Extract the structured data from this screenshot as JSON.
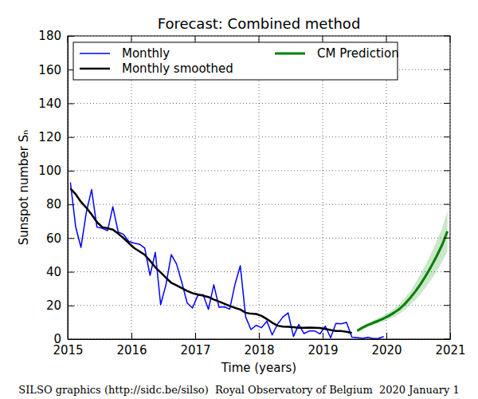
{
  "chart_data": {
    "type": "line",
    "title": "Forecast: Combined method",
    "x_label": "Time (years)",
    "y_label": "Sunspot number Sₙ",
    "caption": "SILSO graphics (http://sidc.be/silso)  Royal Observatory of Belgium  2020 January 1",
    "xlim": [
      2015,
      2021
    ],
    "xticks": [
      2015,
      2016,
      2017,
      2018,
      2019,
      2020,
      2021
    ],
    "ylim": [
      0,
      180
    ],
    "yticks": [
      0,
      20,
      40,
      60,
      80,
      100,
      120,
      140,
      160,
      180
    ],
    "grid": true,
    "legend": "upper left",
    "series": [
      {
        "name": "Monthly",
        "color": "#0000ff",
        "line_style": "solid",
        "x": [
          2015.042,
          2015.125,
          2015.208,
          2015.292,
          2015.375,
          2015.458,
          2015.542,
          2015.625,
          2015.708,
          2015.792,
          2015.875,
          2015.958,
          2016.042,
          2016.125,
          2016.208,
          2016.292,
          2016.375,
          2016.458,
          2016.542,
          2016.625,
          2016.708,
          2016.792,
          2016.875,
          2016.958,
          2017.042,
          2017.125,
          2017.208,
          2017.292,
          2017.375,
          2017.458,
          2017.542,
          2017.625,
          2017.708,
          2017.792,
          2017.875,
          2017.958,
          2018.042,
          2018.125,
          2018.208,
          2018.292,
          2018.375,
          2018.458,
          2018.542,
          2018.625,
          2018.708,
          2018.792,
          2018.875,
          2018.958,
          2019.042,
          2019.125,
          2019.208,
          2019.292,
          2019.375,
          2019.458,
          2019.542,
          2019.625,
          2019.708,
          2019.792,
          2019.875,
          2019.958
        ],
        "values": [
          93.0,
          66.7,
          54.5,
          75.3,
          88.8,
          66.5,
          65.8,
          64.4,
          78.6,
          63.6,
          62.2,
          58.0,
          57.0,
          56.4,
          54.1,
          37.9,
          51.5,
          20.5,
          32.4,
          50.2,
          44.6,
          33.4,
          21.4,
          18.5,
          26.1,
          26.4,
          17.7,
          32.3,
          18.9,
          19.2,
          17.8,
          32.6,
          43.6,
          13.2,
          5.7,
          8.2,
          6.8,
          10.7,
          2.5,
          8.9,
          13.1,
          15.6,
          1.6,
          8.7,
          3.3,
          4.9,
          4.9,
          3.1,
          7.7,
          0.8,
          9.4,
          9.1,
          9.9,
          1.2,
          0.9,
          0.5,
          1.1,
          0.4,
          0.5,
          1.5
        ]
      },
      {
        "name": "Monthly smoothed",
        "color": "#000000",
        "line_style": "solid",
        "x": [
          2015.042,
          2015.125,
          2015.208,
          2015.292,
          2015.375,
          2015.458,
          2015.542,
          2015.625,
          2015.708,
          2015.792,
          2015.875,
          2015.958,
          2016.042,
          2016.125,
          2016.208,
          2016.292,
          2016.375,
          2016.458,
          2016.542,
          2016.625,
          2016.708,
          2016.792,
          2016.875,
          2016.958,
          2017.042,
          2017.125,
          2017.208,
          2017.292,
          2017.375,
          2017.458,
          2017.542,
          2017.625,
          2017.708,
          2017.792,
          2017.875,
          2017.958,
          2018.042,
          2018.125,
          2018.208,
          2018.292,
          2018.375,
          2018.458,
          2018.542,
          2018.625,
          2018.708,
          2018.792,
          2018.875,
          2018.958,
          2019.042,
          2019.125,
          2019.208,
          2019.292,
          2019.375,
          2019.458
        ],
        "values": [
          89.5,
          86.0,
          81.5,
          78.0,
          74.0,
          69.5,
          66.5,
          65.8,
          65.0,
          62.6,
          60.0,
          57.0,
          54.1,
          52.1,
          50.1,
          46.5,
          42.6,
          39.6,
          36.4,
          33.4,
          31.9,
          30.3,
          28.6,
          27.3,
          26.5,
          25.8,
          25.0,
          23.5,
          22.3,
          21.0,
          19.7,
          18.6,
          17.6,
          15.7,
          15.1,
          14.9,
          13.8,
          11.9,
          9.8,
          8.0,
          7.5,
          7.3,
          7.1,
          6.8,
          6.8,
          6.9,
          6.8,
          6.6,
          6.0,
          5.4,
          4.9,
          4.8,
          4.4,
          3.7
        ]
      },
      {
        "name": "CM Prediction",
        "color": "#008000",
        "line_style": "solid",
        "x": [
          2019.542,
          2019.625,
          2019.708,
          2019.792,
          2019.875,
          2019.958,
          2020.042,
          2020.125,
          2020.208,
          2020.292,
          2020.375,
          2020.458,
          2020.542,
          2020.625,
          2020.708,
          2020.792,
          2020.875,
          2020.958
        ],
        "values": [
          5.0,
          6.8,
          8.4,
          9.7,
          10.9,
          12.3,
          13.9,
          15.8,
          18.0,
          21.0,
          24.5,
          28.5,
          33.0,
          38.0,
          43.5,
          49.5,
          56.0,
          64.0
        ],
        "lower": [
          4.0,
          5.8,
          7.2,
          8.3,
          9.3,
          10.5,
          11.9,
          13.3,
          15.0,
          17.5,
          20.5,
          23.5,
          27.0,
          31.0,
          35.5,
          40.5,
          46.0,
          52.0
        ],
        "upper": [
          6.0,
          7.8,
          9.6,
          11.1,
          12.5,
          14.1,
          15.9,
          18.3,
          21.0,
          24.5,
          28.5,
          33.5,
          39.0,
          45.0,
          51.5,
          58.5,
          66.0,
          76.0
        ]
      }
    ]
  }
}
